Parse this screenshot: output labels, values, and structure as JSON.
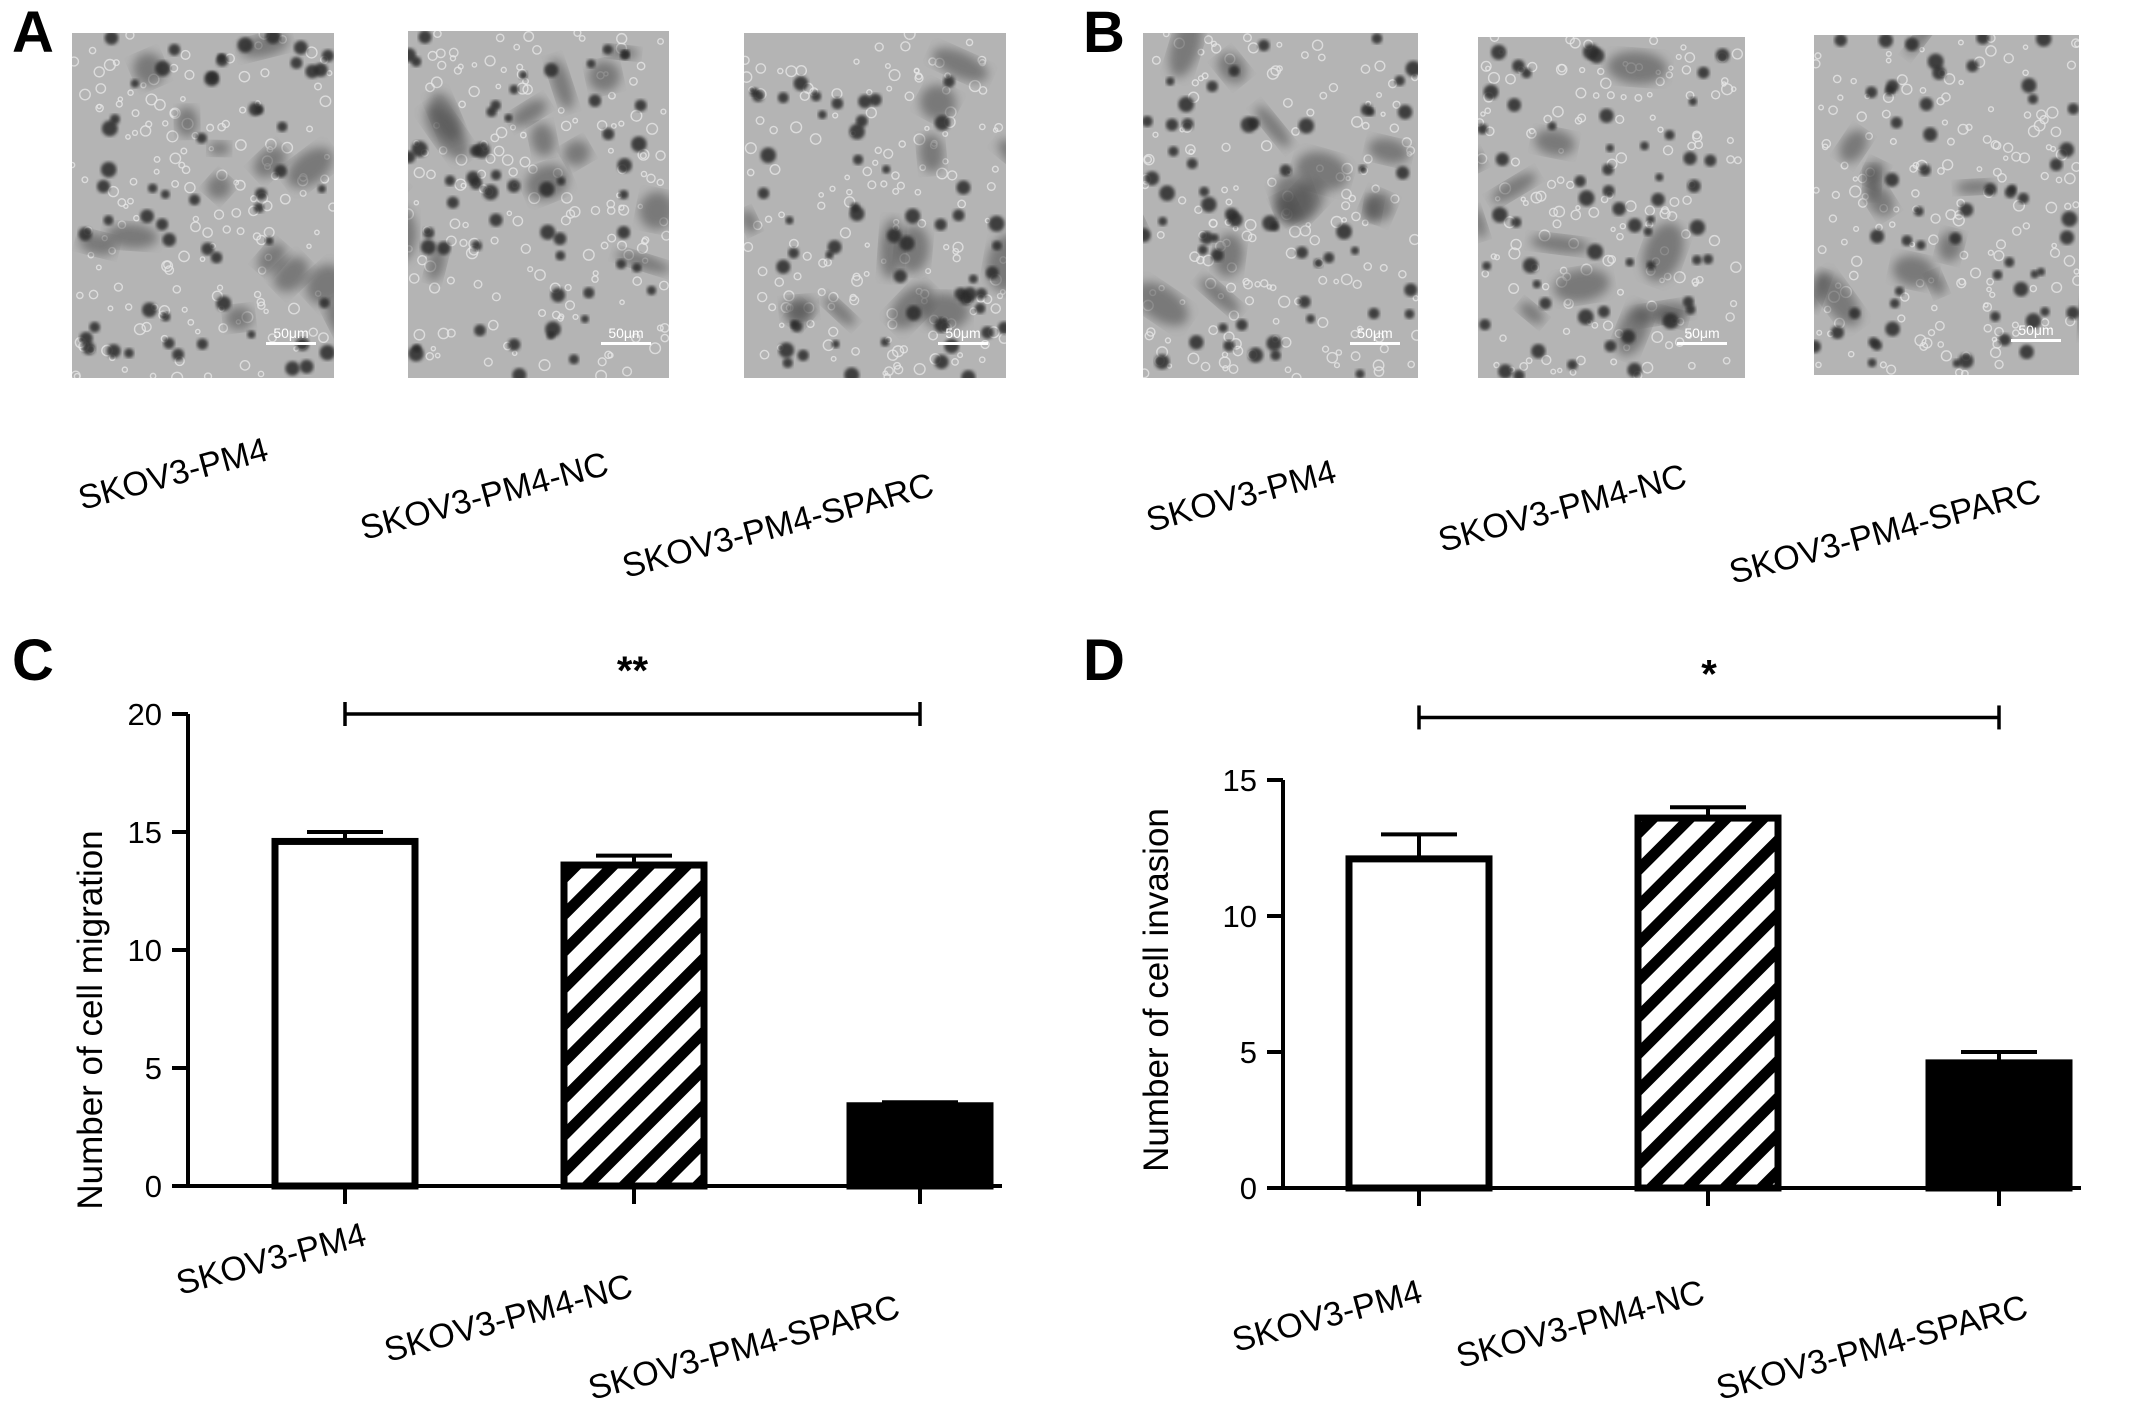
{
  "panels": {
    "A": {
      "letter": "A",
      "images": [
        {
          "label": "SKOV3-PM4",
          "scale_bar": "50μm"
        },
        {
          "label": "SKOV3-PM4-NC",
          "scale_bar": "50μm"
        },
        {
          "label": "SKOV3-PM4-SPARC",
          "scale_bar": "50μm"
        }
      ]
    },
    "B": {
      "letter": "B",
      "images": [
        {
          "label": "SKOV3-PM4",
          "scale_bar": "50μm"
        },
        {
          "label": "SKOV3-PM4-NC",
          "scale_bar": "50μm"
        },
        {
          "label": "SKOV3-PM4-SPARC",
          "scale_bar": "50μm"
        }
      ]
    },
    "C": {
      "letter": "C"
    },
    "D": {
      "letter": "D"
    }
  },
  "colors": {
    "micrograph_bg": "#b4b4b4",
    "cell_dark": "#2a2a2a",
    "bar_outline": "#000000",
    "bar_fill_solid": "#000000",
    "bar_fill_open": "#ffffff"
  },
  "chart_data": [
    {
      "type": "bar",
      "panel": "C",
      "ylabel": "Number of cell migration",
      "categories": [
        "SKOV3-PM4",
        "SKOV3-PM4-NC",
        "SKOV3-PM4-SPARC"
      ],
      "values": [
        14.6,
        13.6,
        3.4
      ],
      "errors": [
        0.4,
        0.4,
        0.15
      ],
      "fills": [
        "open",
        "hatched",
        "solid"
      ],
      "ylim": [
        0,
        20
      ],
      "yticks": [
        0,
        5,
        10,
        15,
        20
      ],
      "significance": {
        "label": "**",
        "from": 0,
        "to": 2,
        "y": 20
      }
    },
    {
      "type": "bar",
      "panel": "D",
      "ylabel": "Number of cell invasion",
      "categories": [
        "SKOV3-PM4",
        "SKOV3-PM4-NC",
        "SKOV3-PM4-SPARC"
      ],
      "values": [
        12.1,
        13.6,
        4.6
      ],
      "errors": [
        0.9,
        0.4,
        0.4
      ],
      "fills": [
        "open",
        "hatched",
        "solid"
      ],
      "ylim": [
        0,
        15
      ],
      "yticks": [
        0,
        5,
        10,
        15
      ],
      "significance": {
        "label": "*",
        "from": 0,
        "to": 2,
        "y": 17.3
      }
    }
  ]
}
